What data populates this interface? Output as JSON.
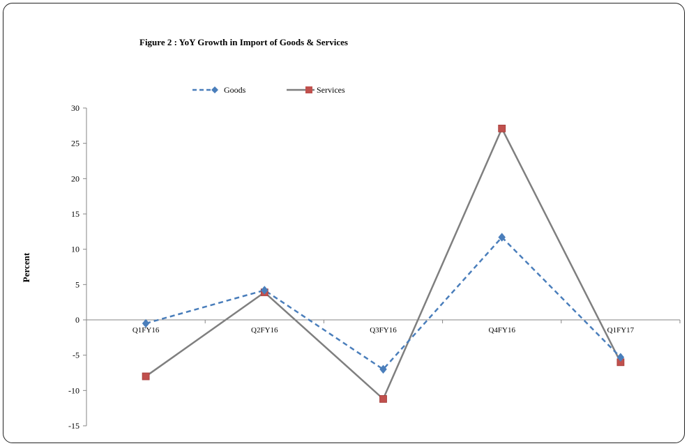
{
  "chart_data": {
    "type": "line",
    "title": "Figure 2 : YoY Growth in Import  of Goods & Services",
    "xlabel": "",
    "ylabel": "Percent",
    "categories": [
      "Q1FY16",
      "Q2FY16",
      "Q3FY16",
      "Q4FY16",
      "Q1FY17"
    ],
    "ylim": [
      -15,
      30
    ],
    "yticks": [
      30,
      25,
      20,
      15,
      10,
      5,
      0,
      -5,
      -10,
      -15
    ],
    "grid": false,
    "legend_position": "top-left",
    "series": [
      {
        "name": "Goods",
        "values": [
          -0.5,
          4.2,
          -7.0,
          11.7,
          -5.3
        ],
        "color": "#4a7ebb",
        "line": "dashed",
        "marker": "diamond"
      },
      {
        "name": "Services",
        "values": [
          -8.0,
          3.9,
          -11.2,
          27.1,
          -6.0
        ],
        "color": "#7f7f7f",
        "marker_color": "#c0504d",
        "line": "solid",
        "marker": "square"
      }
    ]
  }
}
